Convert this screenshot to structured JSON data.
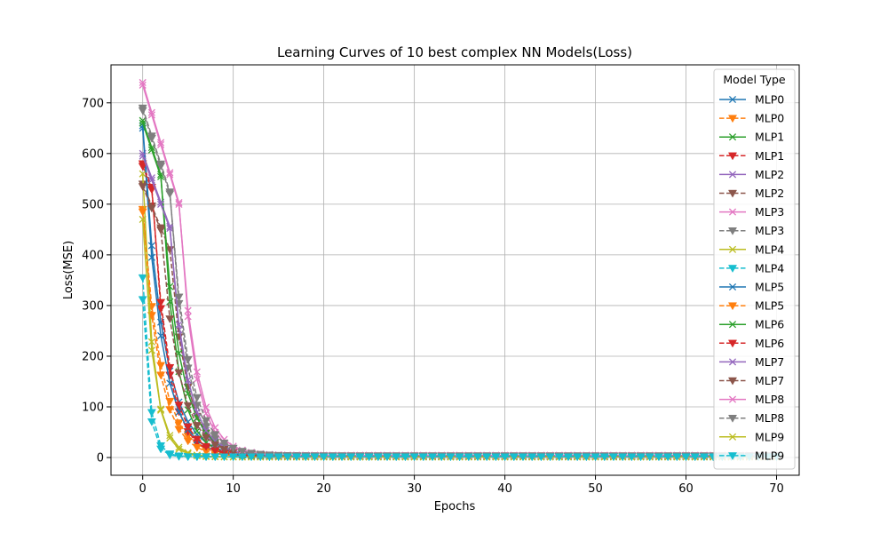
{
  "chart_data": {
    "type": "line",
    "title": "Learning Curves of 10 best complex NN Models(Loss)",
    "xlabel": "Epochs",
    "ylabel": "Loss(MSE)",
    "xlim": [
      -3.5,
      72.5
    ],
    "ylim": [
      -35,
      775
    ],
    "xticks": [
      0,
      10,
      20,
      30,
      40,
      50,
      60,
      70
    ],
    "yticks": [
      0,
      100,
      200,
      300,
      400,
      500,
      600,
      700
    ],
    "grid": true,
    "legend": {
      "title": "Model Type",
      "placement": "top-right"
    },
    "series": [
      {
        "name": "MLP0",
        "color": "#1f77b4",
        "style": "solid",
        "marker": "x",
        "start": 655,
        "k": 0.45,
        "shift": 0,
        "floor": 1.5,
        "end": 70
      },
      {
        "name": "MLP0",
        "color": "#ff7f0e",
        "style": "dashed",
        "marker": "v",
        "start": 490,
        "k": 0.5,
        "shift": 0,
        "floor": 2.5,
        "end": 70
      },
      {
        "name": "MLP1",
        "color": "#2ca02c",
        "style": "solid",
        "marker": "x",
        "start": 665,
        "k": 0.6,
        "shift": 2,
        "floor": 2.0,
        "end": 70
      },
      {
        "name": "MLP1",
        "color": "#d62728",
        "style": "dashed",
        "marker": "v",
        "start": 580,
        "k": 0.6,
        "shift": 1,
        "floor": 3.0,
        "end": 70
      },
      {
        "name": "MLP2",
        "color": "#9467bd",
        "style": "solid",
        "marker": "x",
        "start": 600,
        "k": 0.6,
        "shift": 3,
        "floor": 4.0,
        "end": 70
      },
      {
        "name": "MLP2",
        "color": "#8c564b",
        "style": "dashed",
        "marker": "v",
        "start": 540,
        "k": 0.55,
        "shift": 3,
        "floor": 3.5,
        "end": 70
      },
      {
        "name": "MLP3",
        "color": "#e377c2",
        "style": "solid",
        "marker": "x",
        "start": 740,
        "k": 0.6,
        "shift": 4,
        "floor": 4.5,
        "end": 70
      },
      {
        "name": "MLP3",
        "color": "#7f7f7f",
        "style": "dashed",
        "marker": "v",
        "start": 690,
        "k": 0.55,
        "shift": 3,
        "floor": 3.5,
        "end": 70
      },
      {
        "name": "MLP4",
        "color": "#bcbd22",
        "style": "solid",
        "marker": "x",
        "start": 560,
        "k": 0.9,
        "shift": 0,
        "floor": 1.0,
        "end": 70
      },
      {
        "name": "MLP4",
        "color": "#17becf",
        "style": "dashed",
        "marker": "v",
        "start": 355,
        "k": 1.4,
        "shift": 0,
        "floor": 2.0,
        "end": 70
      },
      {
        "name": "MLP5",
        "color": "#1f77b4",
        "style": "solid",
        "marker": "x",
        "start": 650,
        "k": 0.5,
        "shift": 0,
        "floor": 2.0,
        "end": 70
      },
      {
        "name": "MLP5",
        "color": "#ff7f0e",
        "style": "dashed",
        "marker": "v",
        "start": 485,
        "k": 0.55,
        "shift": 0,
        "floor": 2.0,
        "end": 70
      },
      {
        "name": "MLP6",
        "color": "#2ca02c",
        "style": "solid",
        "marker": "x",
        "start": 660,
        "k": 0.5,
        "shift": 2,
        "floor": 3.0,
        "end": 70
      },
      {
        "name": "MLP6",
        "color": "#d62728",
        "style": "dashed",
        "marker": "v",
        "start": 575,
        "k": 0.55,
        "shift": 1,
        "floor": 2.5,
        "end": 70
      },
      {
        "name": "MLP7",
        "color": "#9467bd",
        "style": "solid",
        "marker": "x",
        "start": 595,
        "k": 0.55,
        "shift": 3,
        "floor": 3.5,
        "end": 70
      },
      {
        "name": "MLP7",
        "color": "#8c564b",
        "style": "dashed",
        "marker": "v",
        "start": 535,
        "k": 0.5,
        "shift": 2,
        "floor": 3.0,
        "end": 70
      },
      {
        "name": "MLP8",
        "color": "#e377c2",
        "style": "solid",
        "marker": "x",
        "start": 735,
        "k": 0.55,
        "shift": 4,
        "floor": 4.0,
        "end": 70
      },
      {
        "name": "MLP8",
        "color": "#7f7f7f",
        "style": "dashed",
        "marker": "v",
        "start": 685,
        "k": 0.5,
        "shift": 3,
        "floor": 3.0,
        "end": 70
      },
      {
        "name": "MLP9",
        "color": "#bcbd22",
        "style": "solid",
        "marker": "x",
        "start": 470,
        "k": 0.8,
        "shift": 0,
        "floor": 1.0,
        "end": 70
      },
      {
        "name": "MLP9",
        "color": "#17becf",
        "style": "dashed",
        "marker": "v",
        "start": 312,
        "k": 1.5,
        "shift": 0,
        "floor": 1.5,
        "end": 70
      }
    ]
  }
}
